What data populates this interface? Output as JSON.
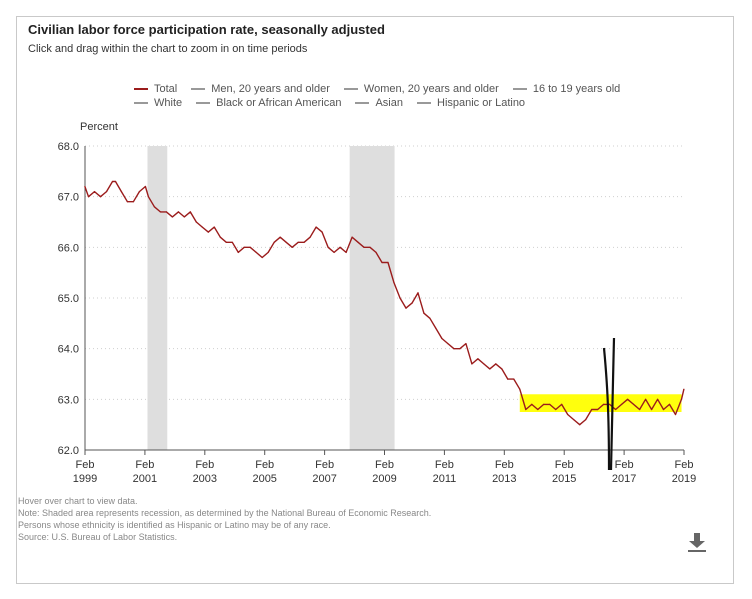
{
  "header": {
    "title": "Civilian labor force participation rate, seasonally adjusted",
    "subtitle": "Click and drag within the chart to zoom in on time periods"
  },
  "legend": {
    "row1": [
      "Total",
      "Men, 20 years and older",
      "Women, 20 years and older",
      "16 to 19 years old"
    ],
    "row2": [
      "White",
      "Black or African American",
      "Asian",
      "Hispanic or Latino"
    ],
    "colors": {
      "total": "#9b1c1c",
      "other": "#999999"
    }
  },
  "notes": {
    "hover": "Hover over chart to view data.",
    "note1": "Note: Shaded area represents recession, as determined by the National Bureau of Economic Research.",
    "note2": "Persons whose ethnicity is identified as Hispanic or Latino may be of any race.",
    "source": "Source: U.S. Bureau of Labor Statistics."
  },
  "download_icon": "download-icon",
  "chart_data": {
    "type": "line",
    "title": "Civilian labor force participation rate, seasonally adjusted",
    "ylabel": "Percent",
    "xlabel": "",
    "ylim": [
      62.0,
      68.0
    ],
    "xlim": [
      1999.083,
      2019.083
    ],
    "yticks": [
      "62.0",
      "63.0",
      "64.0",
      "65.0",
      "66.0",
      "67.0",
      "68.0"
    ],
    "xticks": [
      {
        "month": "Feb",
        "year": "1999"
      },
      {
        "month": "Feb",
        "year": "2001"
      },
      {
        "month": "Feb",
        "year": "2003"
      },
      {
        "month": "Feb",
        "year": "2005"
      },
      {
        "month": "Feb",
        "year": "2007"
      },
      {
        "month": "Feb",
        "year": "2009"
      },
      {
        "month": "Feb",
        "year": "2011"
      },
      {
        "month": "Feb",
        "year": "2013"
      },
      {
        "month": "Feb",
        "year": "2015"
      },
      {
        "month": "Feb",
        "year": "2017"
      },
      {
        "month": "Feb",
        "year": "2019"
      }
    ],
    "recessions": [
      {
        "start": 2001.17,
        "end": 2001.83
      },
      {
        "start": 2007.92,
        "end": 2009.42
      }
    ],
    "highlight": {
      "x_start": 2013.6,
      "x_end": 2019.0,
      "y_low": 62.75,
      "y_high": 63.1,
      "color": "#ffff00"
    },
    "series": [
      {
        "name": "Total",
        "color": "#9b1c1c",
        "x": [
          1999.08,
          1999.2,
          1999.4,
          1999.6,
          1999.8,
          2000.0,
          2000.1,
          2000.3,
          2000.5,
          2000.7,
          2000.9,
          2001.1,
          2001.2,
          2001.4,
          2001.6,
          2001.8,
          2002.0,
          2002.2,
          2002.4,
          2002.6,
          2002.8,
          2003.0,
          2003.2,
          2003.4,
          2003.6,
          2003.8,
          2004.0,
          2004.2,
          2004.4,
          2004.6,
          2004.8,
          2005.0,
          2005.2,
          2005.4,
          2005.6,
          2005.8,
          2006.0,
          2006.2,
          2006.4,
          2006.6,
          2006.8,
          2007.0,
          2007.2,
          2007.4,
          2007.6,
          2007.8,
          2008.0,
          2008.2,
          2008.4,
          2008.6,
          2008.8,
          2009.0,
          2009.2,
          2009.4,
          2009.6,
          2009.8,
          2010.0,
          2010.2,
          2010.4,
          2010.6,
          2010.8,
          2011.0,
          2011.2,
          2011.4,
          2011.6,
          2011.8,
          2012.0,
          2012.2,
          2012.4,
          2012.6,
          2012.8,
          2013.0,
          2013.2,
          2013.4,
          2013.6,
          2013.8,
          2014.0,
          2014.2,
          2014.4,
          2014.6,
          2014.8,
          2015.0,
          2015.2,
          2015.4,
          2015.6,
          2015.8,
          2016.0,
          2016.2,
          2016.4,
          2016.6,
          2016.8,
          2017.0,
          2017.2,
          2017.4,
          2017.6,
          2017.8,
          2018.0,
          2018.2,
          2018.4,
          2018.6,
          2018.8,
          2019.0,
          2019.08
        ],
        "values": [
          67.2,
          67.0,
          67.1,
          67.0,
          67.1,
          67.3,
          67.3,
          67.1,
          66.9,
          66.9,
          67.1,
          67.2,
          67.0,
          66.8,
          66.7,
          66.7,
          66.6,
          66.7,
          66.6,
          66.7,
          66.5,
          66.4,
          66.3,
          66.4,
          66.2,
          66.1,
          66.1,
          65.9,
          66.0,
          66.0,
          65.9,
          65.8,
          65.9,
          66.1,
          66.2,
          66.1,
          66.0,
          66.1,
          66.1,
          66.2,
          66.4,
          66.3,
          66.0,
          65.9,
          66.0,
          65.9,
          66.2,
          66.1,
          66.0,
          66.0,
          65.9,
          65.7,
          65.7,
          65.3,
          65.0,
          64.8,
          64.9,
          65.1,
          64.7,
          64.6,
          64.4,
          64.2,
          64.1,
          64.0,
          64.0,
          64.1,
          63.7,
          63.8,
          63.7,
          63.6,
          63.7,
          63.6,
          63.4,
          63.4,
          63.2,
          62.8,
          62.9,
          62.8,
          62.9,
          62.9,
          62.8,
          62.9,
          62.7,
          62.6,
          62.5,
          62.6,
          62.8,
          62.8,
          62.9,
          62.9,
          62.8,
          62.9,
          63.0,
          62.9,
          62.8,
          63.0,
          62.8,
          63.0,
          62.8,
          62.9,
          62.7,
          63.0,
          63.2
        ]
      }
    ]
  }
}
